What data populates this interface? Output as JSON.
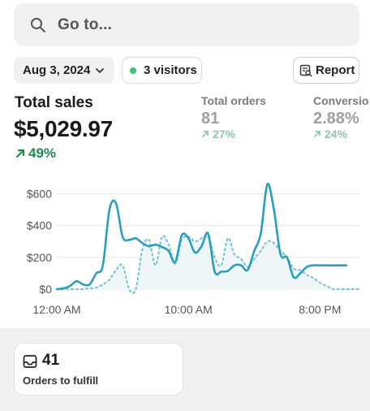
{
  "search": {
    "placeholder": "Go to...",
    "icon": "search-icon"
  },
  "filters": {
    "date_label": "Aug 3, 2024",
    "visitors_label": "3 visitors",
    "visitors_dot_color": "#34c472",
    "report_label": "Report"
  },
  "metrics": {
    "total_sales": {
      "title": "Total sales",
      "value": "$5,029.97",
      "change": "49%"
    },
    "total_orders": {
      "title": "Total orders",
      "value": "81",
      "change": "27%"
    },
    "conversion": {
      "title": "Conversio",
      "value": "2.88%",
      "change": "24%"
    }
  },
  "colors": {
    "accent": "#2a9fbc",
    "positive": "#1f8a4c",
    "muted_positive": "#8ec9a6"
  },
  "chart_data": {
    "type": "line",
    "x_tick_labels": [
      "12:00 AM",
      "10:00 AM",
      "8:00 PM"
    ],
    "y_tick_labels": [
      "$600",
      "$400",
      "$200",
      "$0"
    ],
    "ylim": [
      0,
      700
    ],
    "y_ticks": [
      0,
      200,
      400,
      600
    ],
    "xlim": [
      0,
      23
    ],
    "x_ticks": [
      0,
      10,
      20
    ],
    "series": [
      {
        "style": "solid",
        "x": [
          0,
          0.5,
          1,
          1.5,
          2,
          2.5,
          3,
          3.5,
          4,
          4.5,
          5,
          5.5,
          6,
          6.5,
          7,
          7.5,
          8,
          8.5,
          9,
          9.5,
          10,
          10.5,
          11,
          11.5,
          12,
          12.5,
          13,
          13.5,
          14,
          14.5,
          15,
          15.5,
          16,
          16.5,
          17,
          17.5,
          18,
          18.5,
          19,
          19.5,
          20,
          20.5,
          21,
          21.5,
          22
        ],
        "y": [
          0,
          5,
          20,
          50,
          30,
          30,
          100,
          150,
          500,
          540,
          330,
          310,
          320,
          290,
          270,
          280,
          265,
          240,
          170,
          340,
          320,
          230,
          270,
          350,
          110,
          110,
          115,
          150,
          150,
          120,
          240,
          350,
          660,
          500,
          220,
          200,
          75,
          100,
          140,
          150,
          150,
          150,
          150,
          150,
          150
        ]
      },
      {
        "style": "dotted",
        "x": [
          0,
          0.5,
          1,
          1.5,
          2,
          2.5,
          3,
          3.5,
          4,
          4.5,
          5,
          5.5,
          6,
          6.5,
          7,
          7.5,
          8,
          8.5,
          9,
          9.5,
          10,
          10.5,
          11,
          11.5,
          12,
          12.5,
          13,
          13.5,
          14,
          14.5,
          15,
          15.5,
          16,
          16.5,
          17,
          17.5,
          18,
          18.5,
          19,
          19.5,
          20,
          20.5,
          21,
          21.5,
          22,
          22.5,
          23
        ],
        "y": [
          0,
          0,
          0,
          0,
          0,
          5,
          10,
          30,
          60,
          120,
          150,
          0,
          0,
          250,
          310,
          150,
          330,
          280,
          160,
          310,
          330,
          300,
          320,
          330,
          200,
          150,
          320,
          220,
          190,
          140,
          190,
          240,
          300,
          290,
          240,
          200,
          130,
          120,
          90,
          70,
          40,
          20,
          0,
          0,
          0,
          0,
          0
        ]
      }
    ]
  },
  "fulfill_card": {
    "count": "41",
    "label": "Orders to fulfill"
  }
}
